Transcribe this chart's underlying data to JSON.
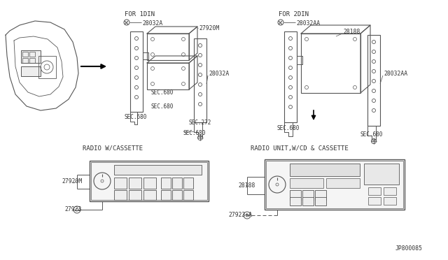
{
  "bg_color": "#ffffff",
  "line_color": "#555555",
  "text_color": "#333333",
  "labels": {
    "for_1din": "FOR 1DIN",
    "for_2din": "FOR 2DIN",
    "radio_cassette": "RADIO W/CASSETTE",
    "radio_cd_cassette": "RADIO UNIT,W/CD & CASSETTE",
    "part_28032A_1": "28032A",
    "part_27920M_1": "27920M",
    "part_28032A_2": "28032A",
    "part_28032AA_1": "28032AA",
    "part_28188_1": "28188",
    "part_28032AA_2": "28032AA",
    "sec680_1": "SEC.680",
    "sec680_2": "SEC.680",
    "sec272": "SEC.272",
    "sec680_3": "SEC.680",
    "sec680_4": "SEC.680",
    "sec680_5": "SEC.680",
    "part_27920M_2": "27920M",
    "part_27923": "27923",
    "part_28188_2": "28188",
    "part_27923A": "27923+A",
    "diagram_code": "JP800085"
  },
  "font_size_header": 6.5,
  "font_size_part": 5.8,
  "font_size_sec": 5.5
}
